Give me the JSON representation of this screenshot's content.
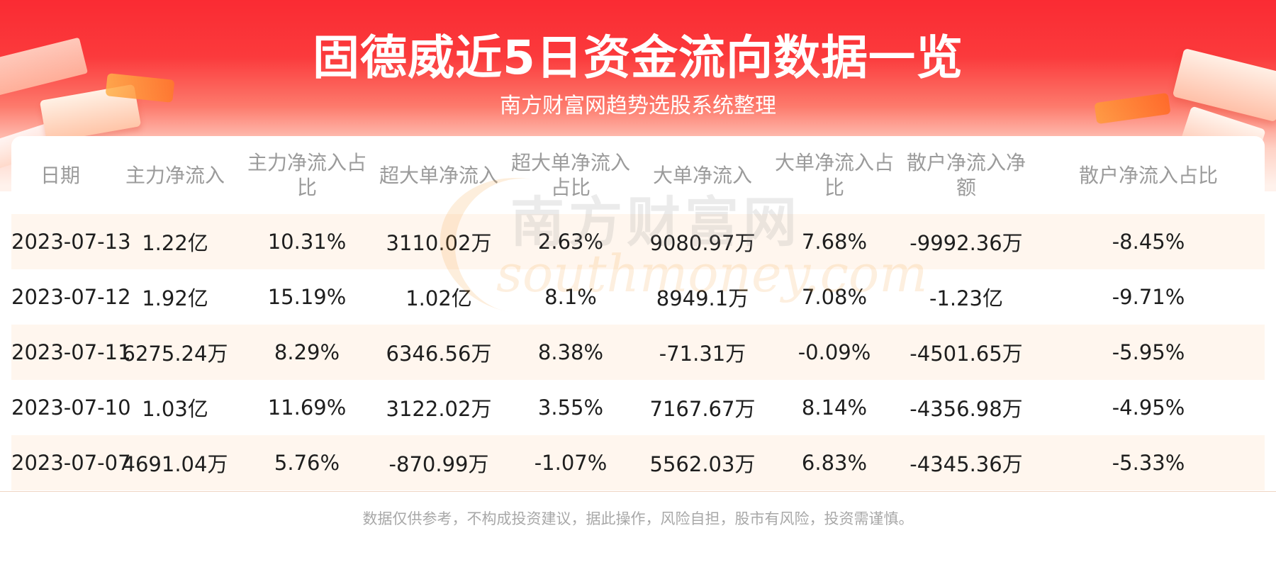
{
  "header": {
    "title": "固德威近5日资金流向数据一览",
    "subtitle": "南方财富网趋势选股系统整理"
  },
  "table": {
    "columns": [
      "日期",
      "主力净流入",
      "主力净流入占比",
      "超大单净流入",
      "超大单净流入占比",
      "大单净流入",
      "大单净流入占比",
      "散户净流入净额",
      "散户净流入占比"
    ],
    "rows": [
      [
        "2023-07-13",
        "1.22亿",
        "10.31%",
        "3110.02万",
        "2.63%",
        "9080.97万",
        "7.68%",
        "-9992.36万",
        "-8.45%"
      ],
      [
        "2023-07-12",
        "1.92亿",
        "15.19%",
        "1.02亿",
        "8.1%",
        "8949.1万",
        "7.08%",
        "-1.23亿",
        "-9.71%"
      ],
      [
        "2023-07-11",
        "6275.24万",
        "8.29%",
        "6346.56万",
        "8.38%",
        "-71.31万",
        "-0.09%",
        "-4501.65万",
        "-5.95%"
      ],
      [
        "2023-07-10",
        "1.03亿",
        "11.69%",
        "3122.02万",
        "3.55%",
        "7167.67万",
        "8.14%",
        "-4356.98万",
        "-4.95%"
      ],
      [
        "2023-07-07",
        "4691.04万",
        "5.76%",
        "-870.99万",
        "-1.07%",
        "5562.03万",
        "6.83%",
        "-4345.36万",
        "-5.33%"
      ]
    ]
  },
  "watermark": {
    "name_cn": "南方财富网",
    "name_en": "southmoney.com"
  },
  "footer": {
    "disclaimer": "数据仅供参考，不构成投资建议，据此操作，风险自担，股市有风险，投资需谨慎。"
  },
  "colors": {
    "header_red": "#fa2b33",
    "row_stripe": "#fff6ee",
    "header_text": "#9b9b9b"
  }
}
